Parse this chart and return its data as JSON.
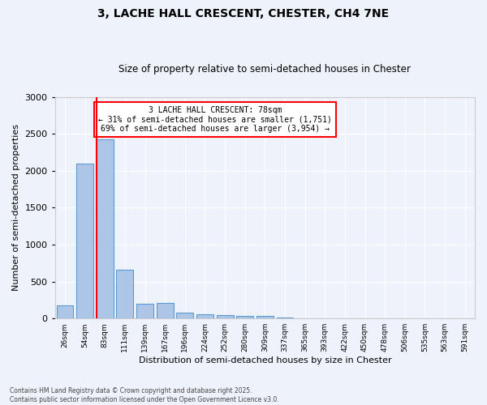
{
  "title1": "3, LACHE HALL CRESCENT, CHESTER, CH4 7NE",
  "title2": "Size of property relative to semi-detached houses in Chester",
  "xlabel": "Distribution of semi-detached houses by size in Chester",
  "ylabel": "Number of semi-detached properties",
  "categories": [
    "26sqm",
    "54sqm",
    "83sqm",
    "111sqm",
    "139sqm",
    "167sqm",
    "196sqm",
    "224sqm",
    "252sqm",
    "280sqm",
    "309sqm",
    "337sqm",
    "365sqm",
    "393sqm",
    "422sqm",
    "450sqm",
    "478sqm",
    "506sqm",
    "535sqm",
    "563sqm",
    "591sqm"
  ],
  "values": [
    175,
    2100,
    2420,
    660,
    200,
    210,
    80,
    55,
    50,
    40,
    30,
    10,
    5,
    0,
    0,
    0,
    0,
    0,
    0,
    0,
    0
  ],
  "bar_color": "#adc6e8",
  "bar_edgecolor": "#5b9bd5",
  "background_color": "#eef2fa",
  "grid_color": "#ffffff",
  "vline_color": "red",
  "annotation_title": "3 LACHE HALL CRESCENT: 78sqm",
  "annotation_line1": "← 31% of semi-detached houses are smaller (1,751)",
  "annotation_line2": "69% of semi-detached houses are larger (3,954) →",
  "annotation_box_color": "red",
  "footer1": "Contains HM Land Registry data © Crown copyright and database right 2025.",
  "footer2": "Contains public sector information licensed under the Open Government Licence v3.0.",
  "ylim": [
    0,
    3000
  ],
  "yticks": [
    0,
    500,
    1000,
    1500,
    2000,
    2500,
    3000
  ]
}
